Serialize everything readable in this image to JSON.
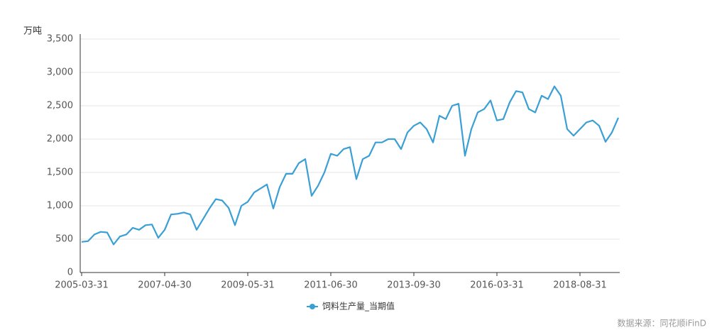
{
  "chart_data": {
    "type": "line",
    "y_unit": "万吨",
    "source": "数据来源：同花顺iFinD",
    "categories": [
      "2005-03-31",
      null,
      null,
      null,
      null,
      null,
      null,
      null,
      null,
      null,
      null,
      null,
      null,
      "2007-04-30",
      null,
      null,
      null,
      null,
      null,
      null,
      null,
      null,
      null,
      null,
      null,
      null,
      "2009-05-31",
      null,
      null,
      null,
      null,
      null,
      null,
      null,
      null,
      null,
      null,
      null,
      null,
      "2011-06-30",
      null,
      null,
      null,
      null,
      null,
      null,
      null,
      null,
      null,
      null,
      null,
      null,
      "2013-09-30",
      null,
      null,
      null,
      null,
      null,
      null,
      null,
      null,
      null,
      null,
      null,
      null,
      "2016-03-31",
      null,
      null,
      null,
      null,
      null,
      null,
      null,
      null,
      null,
      null,
      null,
      null,
      "2018-08-31",
      null,
      null,
      null,
      null,
      null,
      null
    ],
    "series": [
      {
        "name": "饲料生产量_当期值",
        "color": "#3a9fd5",
        "values": [
          460,
          470,
          570,
          610,
          600,
          420,
          540,
          570,
          670,
          640,
          710,
          720,
          520,
          640,
          870,
          880,
          900,
          870,
          640,
          800,
          960,
          1100,
          1080,
          970,
          710,
          1000,
          1060,
          1200,
          1260,
          1320,
          960,
          1280,
          1480,
          1480,
          1640,
          1700,
          1150,
          1300,
          1500,
          1780,
          1750,
          1850,
          1880,
          1400,
          1700,
          1750,
          1950,
          1950,
          2000,
          2000,
          1850,
          2100,
          2200,
          2250,
          2150,
          1950,
          2350,
          2300,
          2500,
          2530,
          1750,
          2150,
          2400,
          2450,
          2580,
          2280,
          2300,
          2550,
          2720,
          2700,
          2450,
          2400,
          2650,
          2600,
          2790,
          2650,
          2150,
          2050,
          2150,
          2250,
          2280,
          2200,
          1960,
          2100,
          2320
        ]
      }
    ],
    "ylim": [
      0,
      3500
    ],
    "yticks": [
      0,
      500,
      {
        "value": 1000,
        "label": "1,000"
      },
      {
        "value": 1500,
        "label": "1,500"
      },
      {
        "value": 2000,
        "label": "2,000"
      },
      {
        "value": 2500,
        "label": "2,500"
      },
      {
        "value": 3000,
        "label": "3,000"
      },
      {
        "value": 3500,
        "label": "3,500"
      }
    ],
    "grid": true
  }
}
